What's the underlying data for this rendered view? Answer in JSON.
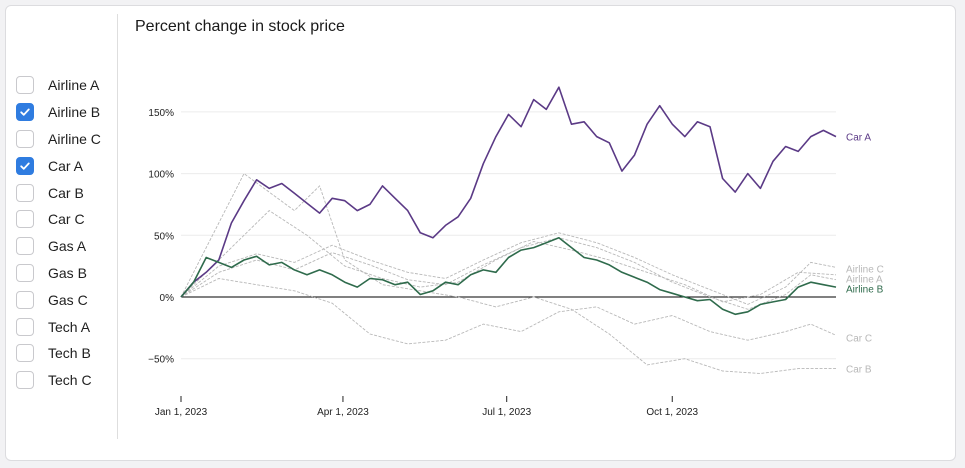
{
  "checkboxes": [
    {
      "label": "Airline A",
      "checked": false
    },
    {
      "label": "Airline B",
      "checked": true
    },
    {
      "label": "Airline C",
      "checked": false
    },
    {
      "label": "Car A",
      "checked": true
    },
    {
      "label": "Car B",
      "checked": false
    },
    {
      "label": "Car C",
      "checked": false
    },
    {
      "label": "Gas A",
      "checked": false
    },
    {
      "label": "Gas B",
      "checked": false
    },
    {
      "label": "Gas C",
      "checked": false
    },
    {
      "label": "Tech A",
      "checked": false
    },
    {
      "label": "Tech B",
      "checked": false
    },
    {
      "label": "Tech C",
      "checked": false
    }
  ],
  "chart_data": {
    "type": "line",
    "title": "Percent change in stock price",
    "xlabel": "",
    "ylabel": "",
    "ylim": [
      -70,
      175
    ],
    "xlim": [
      "2023-01-01",
      "2023-12-31"
    ],
    "yticks": [
      {
        "value": 150,
        "label": "150%"
      },
      {
        "value": 100,
        "label": "100%"
      },
      {
        "value": 50,
        "label": "50%"
      },
      {
        "value": 0,
        "label": "0%"
      },
      {
        "value": -50,
        "label": "−50%"
      }
    ],
    "xticks": [
      {
        "value": "2023-01-01",
        "label": "Jan 1, 2023"
      },
      {
        "value": "2023-04-01",
        "label": "Apr 1, 2023"
      },
      {
        "value": "2023-07-01",
        "label": "Jul 1, 2023"
      },
      {
        "value": "2023-10-01",
        "label": "Oct 1, 2023"
      }
    ],
    "colors": {
      "Car A": "#5b3a86",
      "Airline B": "#2f6b4c",
      "inactive": "#b8b8b8",
      "zero": "#000000"
    },
    "series": [
      {
        "name": "Car A",
        "highlight": true,
        "points": [
          [
            "2023-01-01",
            0
          ],
          [
            "2023-01-08",
            12
          ],
          [
            "2023-01-15",
            20
          ],
          [
            "2023-01-22",
            30
          ],
          [
            "2023-01-29",
            60
          ],
          [
            "2023-02-05",
            78
          ],
          [
            "2023-02-12",
            95
          ],
          [
            "2023-02-19",
            88
          ],
          [
            "2023-02-26",
            92
          ],
          [
            "2023-03-05",
            84
          ],
          [
            "2023-03-12",
            76
          ],
          [
            "2023-03-19",
            68
          ],
          [
            "2023-03-26",
            80
          ],
          [
            "2023-04-02",
            78
          ],
          [
            "2023-04-09",
            70
          ],
          [
            "2023-04-16",
            75
          ],
          [
            "2023-04-23",
            90
          ],
          [
            "2023-04-30",
            80
          ],
          [
            "2023-05-07",
            70
          ],
          [
            "2023-05-14",
            52
          ],
          [
            "2023-05-21",
            48
          ],
          [
            "2023-05-28",
            58
          ],
          [
            "2023-06-04",
            65
          ],
          [
            "2023-06-11",
            80
          ],
          [
            "2023-06-18",
            108
          ],
          [
            "2023-06-25",
            130
          ],
          [
            "2023-07-02",
            148
          ],
          [
            "2023-07-09",
            138
          ],
          [
            "2023-07-16",
            160
          ],
          [
            "2023-07-23",
            152
          ],
          [
            "2023-07-30",
            170
          ],
          [
            "2023-08-06",
            140
          ],
          [
            "2023-08-13",
            142
          ],
          [
            "2023-08-20",
            130
          ],
          [
            "2023-08-27",
            125
          ],
          [
            "2023-09-03",
            102
          ],
          [
            "2023-09-10",
            115
          ],
          [
            "2023-09-17",
            140
          ],
          [
            "2023-09-24",
            155
          ],
          [
            "2023-10-01",
            140
          ],
          [
            "2023-10-08",
            130
          ],
          [
            "2023-10-15",
            142
          ],
          [
            "2023-10-22",
            138
          ],
          [
            "2023-10-29",
            96
          ],
          [
            "2023-11-05",
            85
          ],
          [
            "2023-11-12",
            100
          ],
          [
            "2023-11-19",
            88
          ],
          [
            "2023-11-26",
            110
          ],
          [
            "2023-12-03",
            122
          ],
          [
            "2023-12-10",
            118
          ],
          [
            "2023-12-17",
            130
          ],
          [
            "2023-12-24",
            135
          ],
          [
            "2023-12-31",
            130
          ]
        ]
      },
      {
        "name": "Airline B",
        "highlight": true,
        "points": [
          [
            "2023-01-01",
            0
          ],
          [
            "2023-01-08",
            12
          ],
          [
            "2023-01-15",
            32
          ],
          [
            "2023-01-22",
            28
          ],
          [
            "2023-01-29",
            24
          ],
          [
            "2023-02-05",
            30
          ],
          [
            "2023-02-12",
            33
          ],
          [
            "2023-02-19",
            26
          ],
          [
            "2023-02-26",
            28
          ],
          [
            "2023-03-05",
            22
          ],
          [
            "2023-03-12",
            18
          ],
          [
            "2023-03-19",
            22
          ],
          [
            "2023-03-26",
            18
          ],
          [
            "2023-04-02",
            12
          ],
          [
            "2023-04-09",
            8
          ],
          [
            "2023-04-16",
            15
          ],
          [
            "2023-04-23",
            14
          ],
          [
            "2023-04-30",
            10
          ],
          [
            "2023-05-07",
            12
          ],
          [
            "2023-05-14",
            2
          ],
          [
            "2023-05-21",
            5
          ],
          [
            "2023-05-28",
            12
          ],
          [
            "2023-06-04",
            10
          ],
          [
            "2023-06-11",
            18
          ],
          [
            "2023-06-18",
            22
          ],
          [
            "2023-06-25",
            20
          ],
          [
            "2023-07-02",
            32
          ],
          [
            "2023-07-09",
            38
          ],
          [
            "2023-07-16",
            40
          ],
          [
            "2023-07-23",
            44
          ],
          [
            "2023-07-30",
            48
          ],
          [
            "2023-08-06",
            40
          ],
          [
            "2023-08-13",
            32
          ],
          [
            "2023-08-20",
            30
          ],
          [
            "2023-08-27",
            26
          ],
          [
            "2023-09-03",
            20
          ],
          [
            "2023-09-10",
            16
          ],
          [
            "2023-09-17",
            12
          ],
          [
            "2023-09-24",
            6
          ],
          [
            "2023-10-01",
            3
          ],
          [
            "2023-10-08",
            0
          ],
          [
            "2023-10-15",
            -3
          ],
          [
            "2023-10-22",
            -2
          ],
          [
            "2023-10-29",
            -10
          ],
          [
            "2023-11-05",
            -14
          ],
          [
            "2023-11-12",
            -12
          ],
          [
            "2023-11-19",
            -6
          ],
          [
            "2023-11-26",
            -4
          ],
          [
            "2023-12-03",
            -2
          ],
          [
            "2023-12-10",
            8
          ],
          [
            "2023-12-17",
            12
          ],
          [
            "2023-12-24",
            10
          ],
          [
            "2023-12-31",
            8
          ]
        ]
      },
      {
        "name": "Airline C",
        "highlight": false,
        "points": [
          [
            "2023-01-01",
            0
          ],
          [
            "2023-01-22",
            25
          ],
          [
            "2023-02-12",
            35
          ],
          [
            "2023-03-05",
            28
          ],
          [
            "2023-03-26",
            42
          ],
          [
            "2023-04-16",
            30
          ],
          [
            "2023-05-07",
            20
          ],
          [
            "2023-05-28",
            15
          ],
          [
            "2023-06-18",
            30
          ],
          [
            "2023-07-09",
            44
          ],
          [
            "2023-07-30",
            52
          ],
          [
            "2023-08-20",
            44
          ],
          [
            "2023-09-10",
            32
          ],
          [
            "2023-10-01",
            18
          ],
          [
            "2023-10-22",
            6
          ],
          [
            "2023-11-12",
            -6
          ],
          [
            "2023-12-03",
            8
          ],
          [
            "2023-12-17",
            28
          ],
          [
            "2023-12-31",
            24
          ]
        ]
      },
      {
        "name": "Airline A",
        "highlight": false,
        "points": [
          [
            "2023-01-01",
            0
          ],
          [
            "2023-01-22",
            20
          ],
          [
            "2023-02-12",
            30
          ],
          [
            "2023-03-05",
            22
          ],
          [
            "2023-03-26",
            36
          ],
          [
            "2023-04-16",
            26
          ],
          [
            "2023-05-07",
            14
          ],
          [
            "2023-05-28",
            10
          ],
          [
            "2023-06-18",
            26
          ],
          [
            "2023-07-09",
            40
          ],
          [
            "2023-07-30",
            48
          ],
          [
            "2023-08-20",
            40
          ],
          [
            "2023-09-10",
            28
          ],
          [
            "2023-10-01",
            12
          ],
          [
            "2023-10-22",
            0
          ],
          [
            "2023-11-12",
            -10
          ],
          [
            "2023-12-03",
            2
          ],
          [
            "2023-12-17",
            18
          ],
          [
            "2023-12-31",
            14
          ]
        ]
      },
      {
        "name": "Car C",
        "highlight": false,
        "points": [
          [
            "2023-01-01",
            0
          ],
          [
            "2023-01-22",
            15
          ],
          [
            "2023-02-12",
            10
          ],
          [
            "2023-03-05",
            5
          ],
          [
            "2023-03-26",
            -5
          ],
          [
            "2023-04-16",
            -30
          ],
          [
            "2023-05-07",
            -38
          ],
          [
            "2023-05-28",
            -35
          ],
          [
            "2023-06-18",
            -22
          ],
          [
            "2023-07-09",
            -28
          ],
          [
            "2023-07-30",
            -12
          ],
          [
            "2023-08-20",
            -8
          ],
          [
            "2023-09-10",
            -22
          ],
          [
            "2023-10-01",
            -15
          ],
          [
            "2023-10-22",
            -28
          ],
          [
            "2023-11-12",
            -35
          ],
          [
            "2023-12-03",
            -28
          ],
          [
            "2023-12-17",
            -22
          ],
          [
            "2023-12-31",
            -31
          ]
        ]
      },
      {
        "name": "Car B",
        "highlight": false,
        "points": [
          [
            "2023-01-01",
            0
          ],
          [
            "2023-01-29",
            80
          ],
          [
            "2023-02-05",
            100
          ],
          [
            "2023-02-19",
            85
          ],
          [
            "2023-03-05",
            70
          ],
          [
            "2023-03-19",
            90
          ],
          [
            "2023-04-02",
            30
          ],
          [
            "2023-04-23",
            10
          ],
          [
            "2023-05-14",
            5
          ],
          [
            "2023-06-04",
            0
          ],
          [
            "2023-06-25",
            -8
          ],
          [
            "2023-07-16",
            0
          ],
          [
            "2023-08-06",
            -10
          ],
          [
            "2023-08-27",
            -30
          ],
          [
            "2023-09-17",
            -55
          ],
          [
            "2023-10-08",
            -50
          ],
          [
            "2023-10-29",
            -60
          ],
          [
            "2023-11-19",
            -62
          ],
          [
            "2023-12-10",
            -58
          ],
          [
            "2023-12-31",
            -58
          ]
        ]
      },
      {
        "name": "Tech A",
        "highlight": false,
        "points": [
          [
            "2023-01-01",
            0
          ],
          [
            "2023-01-29",
            40
          ],
          [
            "2023-02-19",
            70
          ],
          [
            "2023-03-12",
            50
          ],
          [
            "2023-04-02",
            25
          ],
          [
            "2023-04-23",
            15
          ],
          [
            "2023-05-14",
            8
          ],
          [
            "2023-06-04",
            12
          ],
          [
            "2023-06-25",
            30
          ],
          [
            "2023-07-16",
            45
          ],
          [
            "2023-08-06",
            38
          ],
          [
            "2023-08-27",
            30
          ],
          [
            "2023-09-17",
            20
          ],
          [
            "2023-10-08",
            10
          ],
          [
            "2023-10-29",
            -4
          ],
          [
            "2023-11-19",
            2
          ],
          [
            "2023-12-10",
            20
          ],
          [
            "2023-12-31",
            18
          ]
        ]
      }
    ],
    "labels": [
      {
        "text": "Car A",
        "value": 130,
        "style": "Car A"
      },
      {
        "text": "Airline C",
        "value": 23,
        "style": "inactive"
      },
      {
        "text": "Airline A",
        "value": 15,
        "style": "inactive"
      },
      {
        "text": "Airline B",
        "value": 7,
        "style": "Airline B"
      },
      {
        "text": "Car C",
        "value": -33,
        "style": "inactive"
      },
      {
        "text": "Car B",
        "value": -58,
        "style": "inactive"
      }
    ]
  }
}
